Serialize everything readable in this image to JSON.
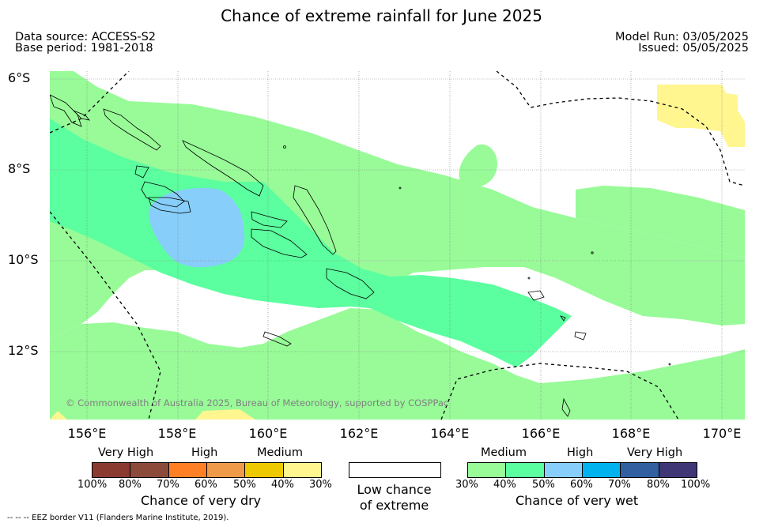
{
  "title": "Chance of extreme rainfall for June 2025",
  "meta": {
    "data_source": "Data source: ACCESS-S2",
    "base_period": "Base period: 1981-2018",
    "model_run": "Model Run: 03/05/2025",
    "issued": "Issued: 05/05/2025"
  },
  "map": {
    "extent": {
      "lon": [
        155.2,
        170.5
      ],
      "lat": [
        -13.5,
        -5.8
      ]
    },
    "lat_labels": [
      "6°S",
      "8°S",
      "10°S",
      "12°S"
    ],
    "lat_values": [
      -6,
      -8,
      -10,
      -12
    ],
    "lon_labels": [
      "156°E",
      "158°E",
      "160°E",
      "162°E",
      "164°E",
      "166°E",
      "168°E",
      "170°E"
    ],
    "lon_values": [
      156,
      158,
      160,
      162,
      164,
      166,
      168,
      170
    ],
    "credit": "© Commonwealth of Australia 2025, Bureau of Meteorology, supported by COSPPac",
    "colors": {
      "wet_medium_light": "#98fb98",
      "wet_medium_dark": "#5bff9f",
      "wet_high": "#87cefa",
      "dry_medium": "#fff68f",
      "coast": "#000000",
      "border": "#000000",
      "grid": "#808080"
    }
  },
  "legend": {
    "dry": {
      "levels": [
        "Very High",
        "High",
        "Medium"
      ],
      "colors": [
        "#8b3a32",
        "#8c4a3b",
        "#ff7f24",
        "#ee9a49",
        "#eec900",
        "#fff68f"
      ],
      "ticks": [
        "100%",
        "80%",
        "70%",
        "60%",
        "50%",
        "40%",
        "30%"
      ],
      "title": "Chance of very dry"
    },
    "low": {
      "line1": "Low chance",
      "line2": "of extreme",
      "color": "#ffffff"
    },
    "wet": {
      "levels": [
        "Medium",
        "High",
        "Very High"
      ],
      "colors": [
        "#98fb98",
        "#5bff9f",
        "#87cefa",
        "#00b2ee",
        "#315fa0",
        "#3e3675"
      ],
      "ticks": [
        "30%",
        "40%",
        "50%",
        "60%",
        "70%",
        "80%",
        "100%"
      ],
      "title": "Chance of very wet"
    }
  },
  "footer": "--  --  -- EEZ border V11 (Flanders Marine Institute, 2019)."
}
